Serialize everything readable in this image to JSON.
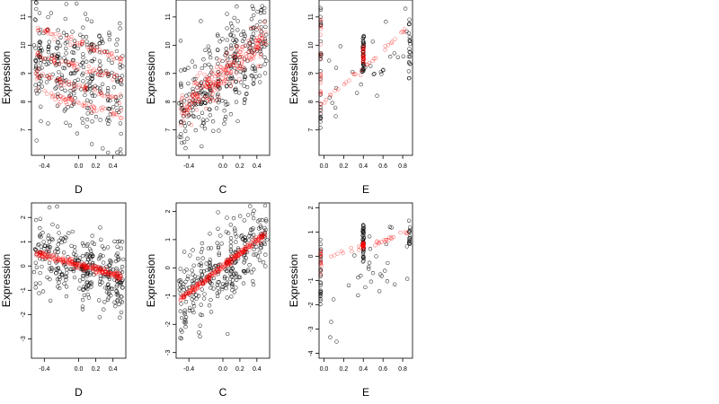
{
  "figure": {
    "rows": 2,
    "cols": 3,
    "observed_color": "#000000",
    "fitted_color": "#ff0000",
    "marker": "open-circle"
  },
  "chart_data": [
    {
      "type": "scatter",
      "title": "",
      "xlabel": "D",
      "ylabel": "Expression",
      "xlim": [
        -0.55,
        0.55
      ],
      "ylim": [
        6.1,
        11.6
      ],
      "xticks": [
        -0.4,
        0.0,
        0.2,
        0.4
      ],
      "xtick_labels": [
        "-0.4",
        "0.0",
        "0.2",
        "0.4"
      ],
      "yticks": [
        7,
        8,
        9,
        10,
        11
      ],
      "ytick_labels": [
        "7",
        "8",
        "9",
        "10",
        "11"
      ],
      "series": [
        {
          "role": "observed",
          "color": "#000000",
          "x_range": [
            -0.5,
            0.5
          ],
          "y_center": [
            9.6,
            8.7
          ],
          "spread": 1.05,
          "count": 320
        },
        {
          "role": "fitted",
          "color": "#ff0000",
          "x_range": [
            -0.5,
            0.5
          ],
          "lines": [
            [
              10.6,
              9.5
            ],
            [
              9.7,
              8.8
            ],
            [
              9.0,
              8.1
            ],
            [
              8.4,
              7.5
            ]
          ],
          "count": 220
        }
      ]
    },
    {
      "type": "scatter",
      "title": "",
      "xlabel": "C",
      "ylabel": "Expression",
      "xlim": [
        -0.55,
        0.55
      ],
      "ylim": [
        6.1,
        11.6
      ],
      "xticks": [
        -0.4,
        0.0,
        0.2,
        0.4
      ],
      "xtick_labels": [
        "-0.4",
        "0.0",
        "0.2",
        "0.4"
      ],
      "yticks": [
        7,
        8,
        9,
        10,
        11
      ],
      "ytick_labels": [
        "7",
        "8",
        "9",
        "10",
        "11"
      ],
      "series": [
        {
          "role": "observed",
          "color": "#000000",
          "x_range": [
            -0.5,
            0.5
          ],
          "y_center": [
            7.6,
            10.3
          ],
          "spread": 0.9,
          "count": 320
        },
        {
          "role": "fitted",
          "color": "#ff0000",
          "x_range": [
            -0.5,
            0.5
          ],
          "y_center": [
            7.6,
            10.3
          ],
          "spread": 0.3,
          "count": 240
        }
      ]
    },
    {
      "type": "scatter",
      "title": "",
      "xlabel": "E",
      "ylabel": "Expression",
      "xlim": [
        -0.05,
        0.9
      ],
      "ylim": [
        6.1,
        11.6
      ],
      "xticks": [
        0.0,
        0.2,
        0.4,
        0.6,
        0.8
      ],
      "xtick_labels": [
        "0.0",
        "0.2",
        "0.4",
        "0.6",
        "0.8"
      ],
      "yticks": [
        7,
        8,
        9,
        10,
        11
      ],
      "ytick_labels": [
        "7",
        "8",
        "9",
        "10",
        "11"
      ],
      "series": [
        {
          "role": "observed",
          "color": "#000000",
          "clusters": [
            {
              "x": -0.04,
              "y_range": [
                6.6,
                11.4
              ],
              "count": 160
            },
            {
              "x": 0.4,
              "y_range": [
                9.0,
                10.4
              ],
              "count": 40
            },
            {
              "x": 0.87,
              "y_range": [
                8.8,
                11.2
              ],
              "count": 20
            }
          ],
          "scattered_count": 30
        },
        {
          "role": "fitted",
          "color": "#ff0000",
          "clusters": [
            {
              "x": -0.04,
              "y_range": [
                7.6,
                11.0
              ],
              "count": 120
            },
            {
              "x": 0.4,
              "y_range": [
                9.4,
                10.0
              ],
              "count": 25
            }
          ],
          "line": {
            "x_range": [
              0.0,
              0.85
            ],
            "y_range": [
              8.0,
              10.6
            ],
            "count": 30
          }
        }
      ]
    },
    {
      "type": "scatter",
      "title": "",
      "xlabel": "D",
      "ylabel": "Expression",
      "xlim": [
        -0.55,
        0.55
      ],
      "ylim": [
        -3.8,
        2.6
      ],
      "xticks": [
        -0.4,
        0.0,
        0.2,
        0.4
      ],
      "xtick_labels": [
        "-0.4",
        "0.0",
        "0.2",
        "0.4"
      ],
      "yticks": [
        -3,
        -2,
        -1,
        0,
        1,
        2
      ],
      "ytick_labels": [
        "-3",
        "-2",
        "-1",
        "0",
        "1",
        "2"
      ],
      "series": [
        {
          "role": "observed",
          "color": "#000000",
          "x_range": [
            -0.5,
            0.5
          ],
          "y_center": [
            0.5,
            -0.45
          ],
          "spread": 0.75,
          "count": 320
        },
        {
          "role": "fitted",
          "color": "#ff0000",
          "x_range": [
            -0.5,
            0.5
          ],
          "y_center": [
            0.55,
            -0.45
          ],
          "spread": 0.07,
          "count": 220
        }
      ]
    },
    {
      "type": "scatter",
      "title": "",
      "xlabel": "C",
      "ylabel": "Expression",
      "xlim": [
        -0.55,
        0.55
      ],
      "ylim": [
        -3.2,
        2.3
      ],
      "xticks": [
        -0.4,
        0.0,
        0.2,
        0.4
      ],
      "xtick_labels": [
        "-0.4",
        "0.0",
        "0.2",
        "0.4"
      ],
      "yticks": [
        -3,
        -2,
        -1,
        0,
        1,
        2
      ],
      "ytick_labels": [
        "-3",
        "-2",
        "-1",
        "0",
        "1",
        "2"
      ],
      "series": [
        {
          "role": "observed",
          "color": "#000000",
          "x_range": [
            -0.5,
            0.5
          ],
          "y_center": [
            -1.1,
            1.2
          ],
          "spread": 0.75,
          "count": 320
        },
        {
          "role": "fitted",
          "color": "#ff0000",
          "x_range": [
            -0.5,
            0.5
          ],
          "y_center": [
            -1.1,
            1.2
          ],
          "spread": 0.06,
          "count": 240
        }
      ]
    },
    {
      "type": "scatter",
      "title": "",
      "xlabel": "E",
      "ylabel": "Expression",
      "xlim": [
        -0.05,
        0.9
      ],
      "ylim": [
        -4.2,
        2.2
      ],
      "xticks": [
        0.0,
        0.2,
        0.4,
        0.6,
        0.8
      ],
      "xtick_labels": [
        "0.0",
        "0.2",
        "0.4",
        "0.6",
        "0.8"
      ],
      "yticks": [
        -4,
        -3,
        -2,
        -1,
        0,
        1,
        2
      ],
      "ytick_labels": [
        "-4",
        "-3",
        "-2",
        "-1",
        "0",
        "1",
        "2"
      ],
      "series": [
        {
          "role": "observed",
          "color": "#000000",
          "clusters": [
            {
              "x": -0.04,
              "y_range": [
                -2.0,
                1.3
              ],
              "count": 160
            },
            {
              "x": 0.4,
              "y_range": [
                -0.4,
                1.3
              ],
              "count": 40
            },
            {
              "x": 0.87,
              "y_range": [
                0.5,
                1.6
              ],
              "count": 15
            }
          ],
          "scattered_count": 30
        },
        {
          "role": "fitted",
          "color": "#ff0000",
          "clusters": [
            {
              "x": -0.04,
              "y_range": [
                -0.8,
                0.3
              ],
              "count": 120
            },
            {
              "x": 0.4,
              "y_range": [
                0.3,
                0.6
              ],
              "count": 25
            }
          ],
          "line": {
            "x_range": [
              0.0,
              0.85
            ],
            "y_range": [
              -0.1,
              0.95
            ],
            "count": 30
          }
        }
      ]
    }
  ]
}
